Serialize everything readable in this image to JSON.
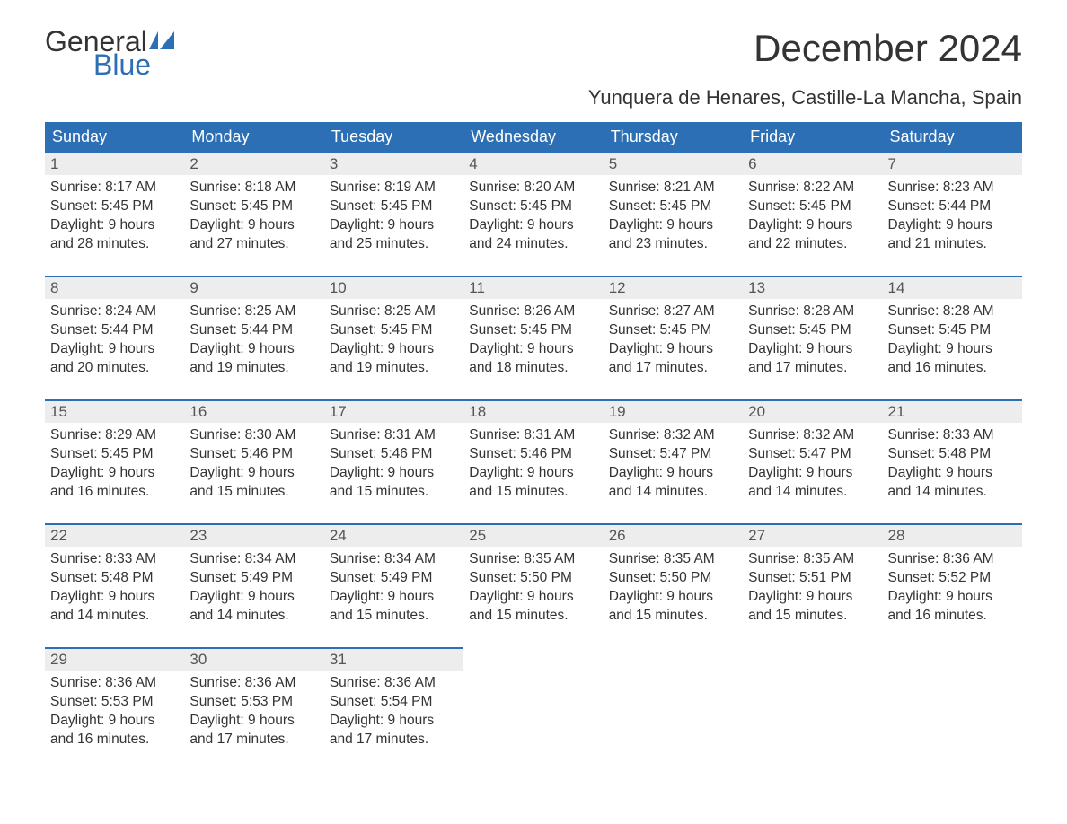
{
  "logo": {
    "line1": "General",
    "line2": "Blue",
    "flag_color": "#2d6fb5"
  },
  "title": "December 2024",
  "location": "Yunquera de Henares, Castille-La Mancha, Spain",
  "colors": {
    "header_bg": "#2d6fb5",
    "header_text": "#ffffff",
    "daynum_bg": "#ededed",
    "border": "#2d6fb5",
    "text": "#333333",
    "background": "#ffffff"
  },
  "fonts": {
    "title_size": 42,
    "location_size": 22,
    "weekday_size": 18,
    "body_size": 15.5,
    "family": "Arial"
  },
  "weekdays": [
    "Sunday",
    "Monday",
    "Tuesday",
    "Wednesday",
    "Thursday",
    "Friday",
    "Saturday"
  ],
  "weeks": [
    [
      {
        "day": "1",
        "sunrise": "Sunrise: 8:17 AM",
        "sunset": "Sunset: 5:45 PM",
        "dl1": "Daylight: 9 hours",
        "dl2": "and 28 minutes."
      },
      {
        "day": "2",
        "sunrise": "Sunrise: 8:18 AM",
        "sunset": "Sunset: 5:45 PM",
        "dl1": "Daylight: 9 hours",
        "dl2": "and 27 minutes."
      },
      {
        "day": "3",
        "sunrise": "Sunrise: 8:19 AM",
        "sunset": "Sunset: 5:45 PM",
        "dl1": "Daylight: 9 hours",
        "dl2": "and 25 minutes."
      },
      {
        "day": "4",
        "sunrise": "Sunrise: 8:20 AM",
        "sunset": "Sunset: 5:45 PM",
        "dl1": "Daylight: 9 hours",
        "dl2": "and 24 minutes."
      },
      {
        "day": "5",
        "sunrise": "Sunrise: 8:21 AM",
        "sunset": "Sunset: 5:45 PM",
        "dl1": "Daylight: 9 hours",
        "dl2": "and 23 minutes."
      },
      {
        "day": "6",
        "sunrise": "Sunrise: 8:22 AM",
        "sunset": "Sunset: 5:45 PM",
        "dl1": "Daylight: 9 hours",
        "dl2": "and 22 minutes."
      },
      {
        "day": "7",
        "sunrise": "Sunrise: 8:23 AM",
        "sunset": "Sunset: 5:44 PM",
        "dl1": "Daylight: 9 hours",
        "dl2": "and 21 minutes."
      }
    ],
    [
      {
        "day": "8",
        "sunrise": "Sunrise: 8:24 AM",
        "sunset": "Sunset: 5:44 PM",
        "dl1": "Daylight: 9 hours",
        "dl2": "and 20 minutes."
      },
      {
        "day": "9",
        "sunrise": "Sunrise: 8:25 AM",
        "sunset": "Sunset: 5:44 PM",
        "dl1": "Daylight: 9 hours",
        "dl2": "and 19 minutes."
      },
      {
        "day": "10",
        "sunrise": "Sunrise: 8:25 AM",
        "sunset": "Sunset: 5:45 PM",
        "dl1": "Daylight: 9 hours",
        "dl2": "and 19 minutes."
      },
      {
        "day": "11",
        "sunrise": "Sunrise: 8:26 AM",
        "sunset": "Sunset: 5:45 PM",
        "dl1": "Daylight: 9 hours",
        "dl2": "and 18 minutes."
      },
      {
        "day": "12",
        "sunrise": "Sunrise: 8:27 AM",
        "sunset": "Sunset: 5:45 PM",
        "dl1": "Daylight: 9 hours",
        "dl2": "and 17 minutes."
      },
      {
        "day": "13",
        "sunrise": "Sunrise: 8:28 AM",
        "sunset": "Sunset: 5:45 PM",
        "dl1": "Daylight: 9 hours",
        "dl2": "and 17 minutes."
      },
      {
        "day": "14",
        "sunrise": "Sunrise: 8:28 AM",
        "sunset": "Sunset: 5:45 PM",
        "dl1": "Daylight: 9 hours",
        "dl2": "and 16 minutes."
      }
    ],
    [
      {
        "day": "15",
        "sunrise": "Sunrise: 8:29 AM",
        "sunset": "Sunset: 5:45 PM",
        "dl1": "Daylight: 9 hours",
        "dl2": "and 16 minutes."
      },
      {
        "day": "16",
        "sunrise": "Sunrise: 8:30 AM",
        "sunset": "Sunset: 5:46 PM",
        "dl1": "Daylight: 9 hours",
        "dl2": "and 15 minutes."
      },
      {
        "day": "17",
        "sunrise": "Sunrise: 8:31 AM",
        "sunset": "Sunset: 5:46 PM",
        "dl1": "Daylight: 9 hours",
        "dl2": "and 15 minutes."
      },
      {
        "day": "18",
        "sunrise": "Sunrise: 8:31 AM",
        "sunset": "Sunset: 5:46 PM",
        "dl1": "Daylight: 9 hours",
        "dl2": "and 15 minutes."
      },
      {
        "day": "19",
        "sunrise": "Sunrise: 8:32 AM",
        "sunset": "Sunset: 5:47 PM",
        "dl1": "Daylight: 9 hours",
        "dl2": "and 14 minutes."
      },
      {
        "day": "20",
        "sunrise": "Sunrise: 8:32 AM",
        "sunset": "Sunset: 5:47 PM",
        "dl1": "Daylight: 9 hours",
        "dl2": "and 14 minutes."
      },
      {
        "day": "21",
        "sunrise": "Sunrise: 8:33 AM",
        "sunset": "Sunset: 5:48 PM",
        "dl1": "Daylight: 9 hours",
        "dl2": "and 14 minutes."
      }
    ],
    [
      {
        "day": "22",
        "sunrise": "Sunrise: 8:33 AM",
        "sunset": "Sunset: 5:48 PM",
        "dl1": "Daylight: 9 hours",
        "dl2": "and 14 minutes."
      },
      {
        "day": "23",
        "sunrise": "Sunrise: 8:34 AM",
        "sunset": "Sunset: 5:49 PM",
        "dl1": "Daylight: 9 hours",
        "dl2": "and 14 minutes."
      },
      {
        "day": "24",
        "sunrise": "Sunrise: 8:34 AM",
        "sunset": "Sunset: 5:49 PM",
        "dl1": "Daylight: 9 hours",
        "dl2": "and 15 minutes."
      },
      {
        "day": "25",
        "sunrise": "Sunrise: 8:35 AM",
        "sunset": "Sunset: 5:50 PM",
        "dl1": "Daylight: 9 hours",
        "dl2": "and 15 minutes."
      },
      {
        "day": "26",
        "sunrise": "Sunrise: 8:35 AM",
        "sunset": "Sunset: 5:50 PM",
        "dl1": "Daylight: 9 hours",
        "dl2": "and 15 minutes."
      },
      {
        "day": "27",
        "sunrise": "Sunrise: 8:35 AM",
        "sunset": "Sunset: 5:51 PM",
        "dl1": "Daylight: 9 hours",
        "dl2": "and 15 minutes."
      },
      {
        "day": "28",
        "sunrise": "Sunrise: 8:36 AM",
        "sunset": "Sunset: 5:52 PM",
        "dl1": "Daylight: 9 hours",
        "dl2": "and 16 minutes."
      }
    ],
    [
      {
        "day": "29",
        "sunrise": "Sunrise: 8:36 AM",
        "sunset": "Sunset: 5:53 PM",
        "dl1": "Daylight: 9 hours",
        "dl2": "and 16 minutes."
      },
      {
        "day": "30",
        "sunrise": "Sunrise: 8:36 AM",
        "sunset": "Sunset: 5:53 PM",
        "dl1": "Daylight: 9 hours",
        "dl2": "and 17 minutes."
      },
      {
        "day": "31",
        "sunrise": "Sunrise: 8:36 AM",
        "sunset": "Sunset: 5:54 PM",
        "dl1": "Daylight: 9 hours",
        "dl2": "and 17 minutes."
      },
      null,
      null,
      null,
      null
    ]
  ]
}
